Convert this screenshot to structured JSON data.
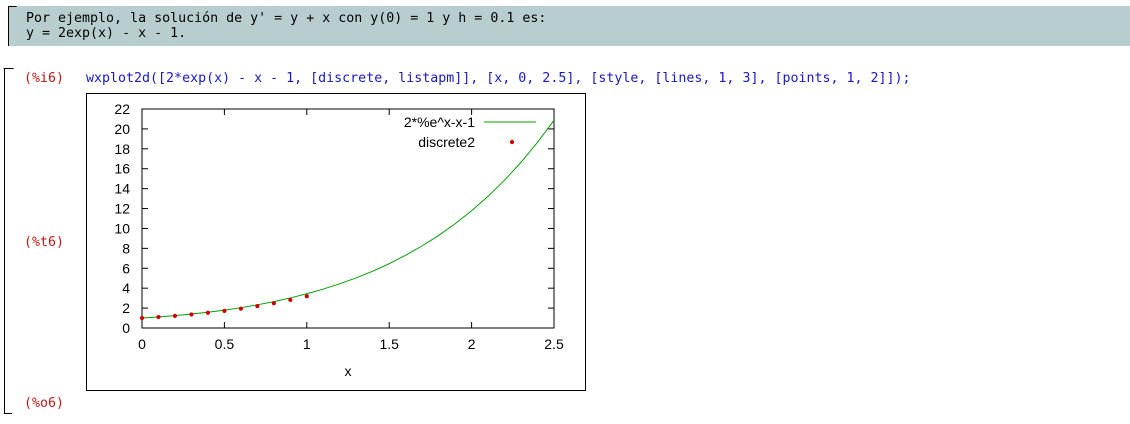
{
  "text_cell": {
    "line1": "Por ejemplo, la solución de y' = y + x con y(0) = 1 y h = 0.1 es:",
    "line2": "y = 2exp(x) - x - 1."
  },
  "input_cell": {
    "prompt_input": "(%i6)",
    "code": "wxplot2d([2*exp(x) - x - 1, [discrete, listapm]], [x, 0, 2.5], [style, [lines, 1, 3], [points, 1, 2]]);",
    "prompt_plot": "(%t6)",
    "prompt_output": "(%o6)"
  },
  "colors": {
    "text_cell_bg": "#b8cece",
    "prompt": "#c01818",
    "code": "#1818c8",
    "line_series": "#00a000",
    "point_series": "#d00000"
  },
  "chart_data": {
    "type": "line",
    "title": "",
    "xlabel": "x",
    "ylabel": "",
    "xlim": [
      0,
      2.5
    ],
    "ylim": [
      0,
      22
    ],
    "xticks": [
      "0",
      "0.5",
      "1",
      "1.5",
      "2",
      "2.5"
    ],
    "yticks": [
      "0",
      "2",
      "4",
      "6",
      "8",
      "10",
      "12",
      "14",
      "16",
      "18",
      "20",
      "22"
    ],
    "legend_position": "top-right",
    "grid": false,
    "series": [
      {
        "name": "2*%e^x-x-1",
        "kind": "line",
        "color": "#00a000",
        "x": [
          0,
          0.1,
          0.2,
          0.3,
          0.4,
          0.5,
          0.6,
          0.7,
          0.8,
          0.9,
          1.0,
          1.1,
          1.2,
          1.3,
          1.4,
          1.5,
          1.6,
          1.7,
          1.8,
          1.9,
          2.0,
          2.1,
          2.2,
          2.3,
          2.4,
          2.5
        ],
        "y": [
          1.0,
          1.11,
          1.24,
          1.4,
          1.58,
          1.8,
          2.04,
          2.33,
          2.65,
          3.02,
          3.44,
          3.91,
          4.44,
          5.04,
          5.71,
          6.46,
          7.31,
          8.25,
          9.3,
          10.47,
          11.78,
          13.23,
          14.85,
          16.65,
          18.65,
          20.86
        ]
      },
      {
        "name": "discrete2",
        "kind": "points",
        "color": "#d00000",
        "x": [
          0,
          0.1,
          0.2,
          0.3,
          0.4,
          0.5,
          0.6,
          0.7,
          0.8,
          0.9,
          1.0
        ],
        "y": [
          1.0,
          1.1,
          1.22,
          1.36,
          1.53,
          1.72,
          1.94,
          2.2,
          2.49,
          2.82,
          3.19
        ]
      }
    ]
  }
}
